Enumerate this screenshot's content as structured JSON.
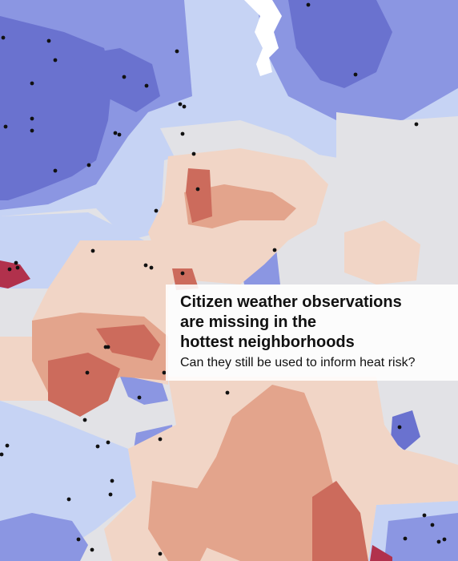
{
  "headline": {
    "lines": [
      "Citizen weather observations",
      "are missing in the",
      "hottest neighborhoods"
    ],
    "subtitle": "Can they still be used to inform heat risk?"
  },
  "colors": {
    "cool_dark": "#6a72cf",
    "cool_mid": "#8b96e2",
    "cool_light": "#c6d3f4",
    "neutral": "#e2e2e6",
    "warm_light": "#f1d5c6",
    "warm_mid": "#e3a48c",
    "warm_dark": "#cc6b5c",
    "hot": "#b1314c",
    "water": "#ffffff",
    "station_dot": "#111111"
  },
  "legend": null
}
